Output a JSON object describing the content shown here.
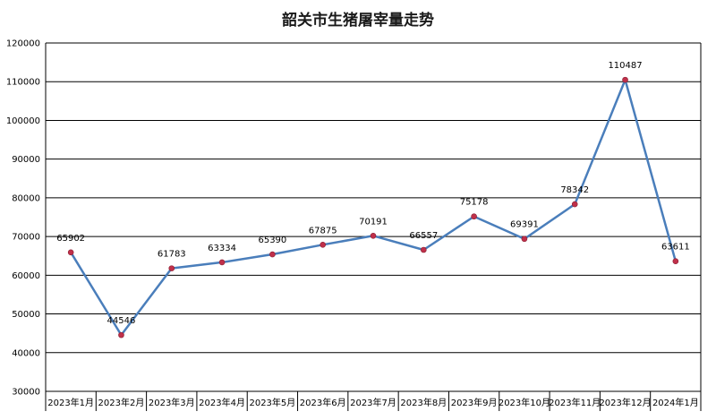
{
  "chart_data": {
    "type": "line",
    "title": "韶关市生猪屠宰量走势",
    "xlabel": "",
    "ylabel": "",
    "categories": [
      "2023年1月",
      "2023年2月",
      "2023年3月",
      "2023年4月",
      "2023年5月",
      "2023年6月",
      "2023年7月",
      "2023年8月",
      "2023年9月",
      "2023年10月",
      "2023年11月",
      "2023年12月",
      "2024年1月"
    ],
    "series": [
      {
        "values": [
          65902,
          44546,
          61783,
          63334,
          65390,
          67875,
          70191,
          66557,
          75178,
          69391,
          78342,
          110487,
          63611
        ],
        "data_labels": [
          "65902",
          "44546",
          "61783",
          "63334",
          "65390",
          "67875",
          "70191",
          "66557",
          "75178",
          "69391",
          "78342",
          "110487",
          "63611"
        ]
      }
    ],
    "ylim": [
      30000,
      120000
    ],
    "yticks": [
      "30000",
      "40000",
      "50000",
      "60000",
      "70000",
      "80000",
      "90000",
      "100000",
      "110000",
      "120000"
    ],
    "grid": true,
    "legend": "none",
    "colors": {
      "line": "#4a7ebb",
      "marker": "#c0304a",
      "grid": "#000000"
    }
  }
}
